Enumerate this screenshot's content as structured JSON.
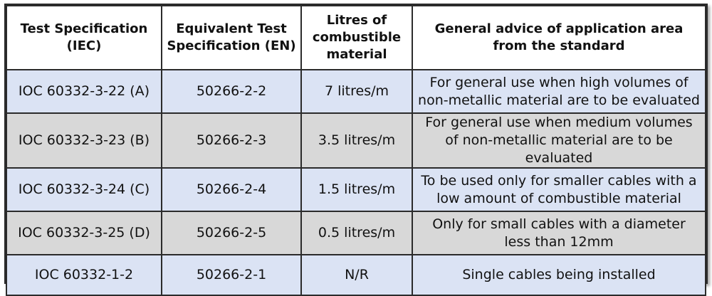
{
  "headers": [
    "Test Specification (IEC)",
    "Equivalent Test Specification (EN)",
    "Litres of combustible material",
    "General advice of application area from the standard"
  ],
  "rows": [
    {
      "iec": "IOC 60332-3-22 (A)",
      "en": "50266-2-2",
      "litres": "7 litres/m",
      "advice": "For general use when high volumes of non-metallic material are to be evaluated"
    },
    {
      "iec": "IOC 60332-3-23 (B)",
      "en": "50266-2-3",
      "litres": "3.5 litres/m",
      "advice": "For general use when medium volumes of non-metallic material are to be evaluated"
    },
    {
      "iec": "IOC 60332-3-24 (C)",
      "en": "50266-2-4",
      "litres": "1.5 litres/m",
      "advice": "To be used only for smaller cables with a low amount of combustible material"
    },
    {
      "iec": "IOC 60332-3-25 (D)",
      "en": "50266-2-5",
      "litres": "0.5 litres/m",
      "advice": "Only for small cables with a diameter less than 12mm"
    },
    {
      "iec": "IOC 60332-1-2",
      "en": "50266-2-1",
      "litres": "N/R",
      "advice": "Single cables being installed"
    }
  ],
  "colors": {
    "row_blue": "#dbe3f4",
    "row_gray": "#d8d8d8",
    "border": "#2b2b2b"
  }
}
